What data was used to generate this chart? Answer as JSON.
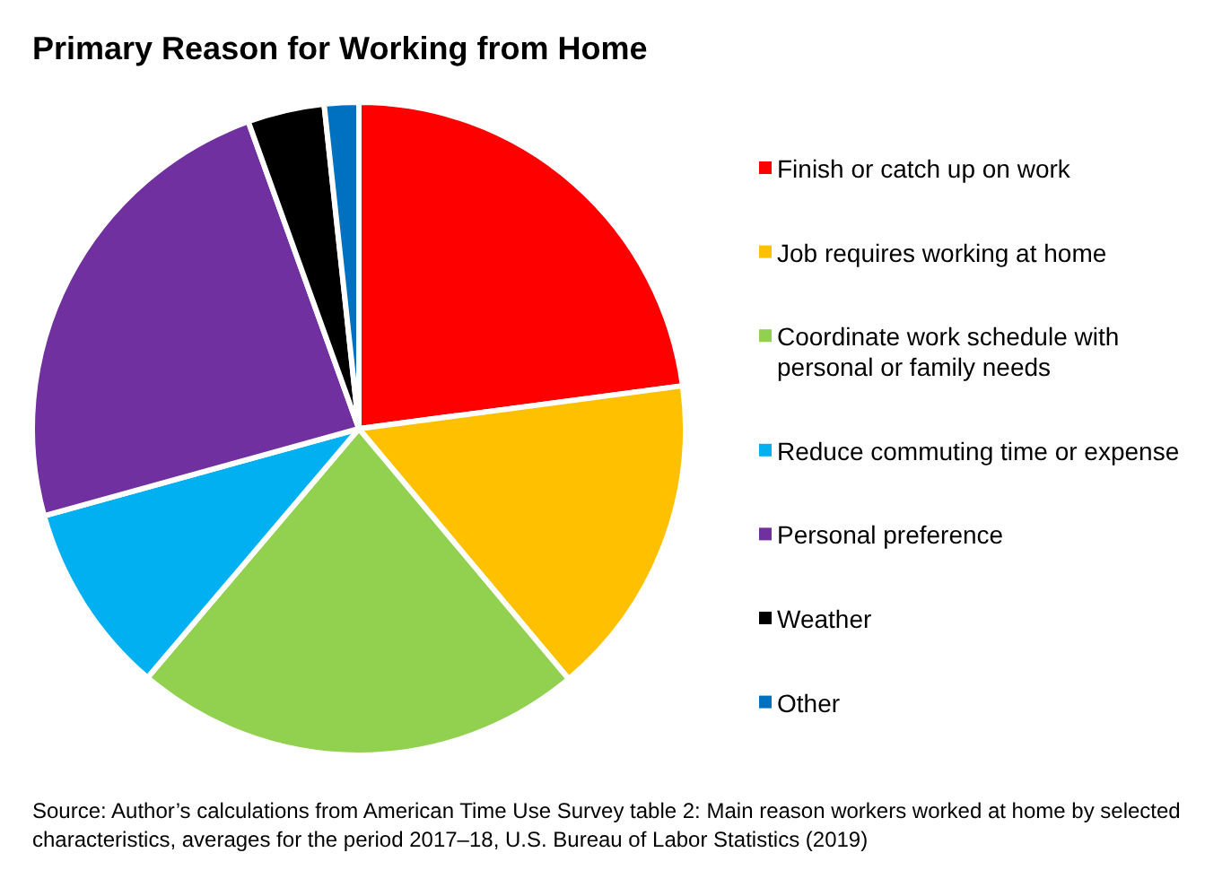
{
  "chart_data": {
    "type": "pie",
    "title": "Primary Reason for Working from Home",
    "categories": [
      "Finish or catch up on work",
      "Job requires working at home",
      "Coordinate work schedule with personal or family needs",
      "Reduce commuting time or expense",
      "Personal preference",
      "Weather",
      "Other"
    ],
    "values": [
      22.9,
      16.0,
      22.3,
      9.5,
      23.8,
      3.8,
      1.7
    ],
    "colors": [
      "#ff0000",
      "#ffc000",
      "#92d050",
      "#00b0f0",
      "#7030a0",
      "#000000",
      "#0070c0"
    ],
    "legend": "right",
    "annotations": [
      "Source: Author’s calculations from American Time Use Survey table 2: Main reason workers worked at home by selected characteristics, averages for the period 2017–18, U.S. Bureau of Labor Statistics (2019)"
    ]
  }
}
